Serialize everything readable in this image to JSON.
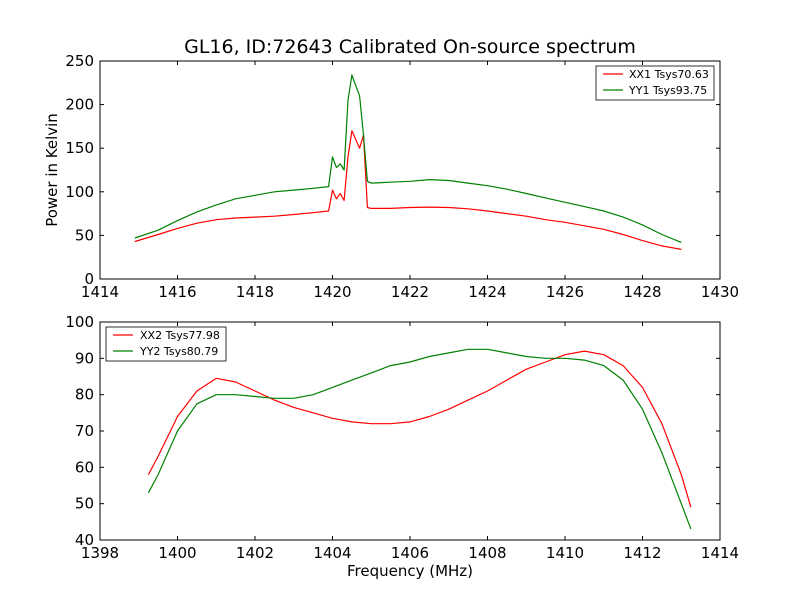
{
  "chart_data": [
    {
      "type": "line",
      "title": "GL16, ID:72643 Calibrated On-source spectrum",
      "xlabel": "",
      "ylabel": "Power in Kelvin",
      "xlim": [
        1414,
        1430
      ],
      "ylim": [
        0,
        250
      ],
      "xticks": [
        1414,
        1416,
        1418,
        1420,
        1422,
        1424,
        1426,
        1428,
        1430
      ],
      "yticks": [
        0,
        50,
        100,
        150,
        200,
        250
      ],
      "grid": false,
      "legend_position": "top-right",
      "series": [
        {
          "name": "XX1 Tsys70.63",
          "color": "#ff0000",
          "points": [
            [
              1414.9,
              43
            ],
            [
              1415.5,
              51
            ],
            [
              1416,
              58
            ],
            [
              1416.5,
              64
            ],
            [
              1417,
              68
            ],
            [
              1417.5,
              70
            ],
            [
              1418,
              71
            ],
            [
              1418.5,
              72
            ],
            [
              1419,
              74
            ],
            [
              1419.5,
              76
            ],
            [
              1419.9,
              78
            ],
            [
              1420.0,
              102
            ],
            [
              1420.1,
              92
            ],
            [
              1420.2,
              98
            ],
            [
              1420.3,
              90
            ],
            [
              1420.4,
              140
            ],
            [
              1420.5,
              170
            ],
            [
              1420.6,
              160
            ],
            [
              1420.7,
              150
            ],
            [
              1420.8,
              165
            ],
            [
              1420.9,
              82
            ],
            [
              1421.0,
              81
            ],
            [
              1421.5,
              81
            ],
            [
              1422,
              82
            ],
            [
              1422.5,
              82.5
            ],
            [
              1423,
              82
            ],
            [
              1423.5,
              80.5
            ],
            [
              1424,
              78
            ],
            [
              1424.5,
              75
            ],
            [
              1425,
              72
            ],
            [
              1425.5,
              68
            ],
            [
              1426,
              65
            ],
            [
              1426.5,
              61
            ],
            [
              1427,
              57
            ],
            [
              1427.5,
              51
            ],
            [
              1428,
              44
            ],
            [
              1428.5,
              38
            ],
            [
              1429,
              34
            ]
          ]
        },
        {
          "name": "YY1 Tsys93.75",
          "color": "#008000",
          "points": [
            [
              1414.9,
              47
            ],
            [
              1415.5,
              56
            ],
            [
              1416,
              67
            ],
            [
              1416.5,
              77
            ],
            [
              1417,
              85
            ],
            [
              1417.5,
              92
            ],
            [
              1418,
              96
            ],
            [
              1418.5,
              100
            ],
            [
              1419,
              102
            ],
            [
              1419.5,
              104
            ],
            [
              1419.9,
              106
            ],
            [
              1420.0,
              140
            ],
            [
              1420.1,
              128
            ],
            [
              1420.2,
              132
            ],
            [
              1420.3,
              125
            ],
            [
              1420.4,
              205
            ],
            [
              1420.5,
              234
            ],
            [
              1420.6,
              222
            ],
            [
              1420.7,
              210
            ],
            [
              1420.8,
              165
            ],
            [
              1420.9,
              112
            ],
            [
              1421.0,
              110
            ],
            [
              1421.5,
              111
            ],
            [
              1422,
              112
            ],
            [
              1422.5,
              114
            ],
            [
              1423,
              113
            ],
            [
              1423.5,
              110
            ],
            [
              1424,
              107
            ],
            [
              1424.5,
              103
            ],
            [
              1425,
              98
            ],
            [
              1425.5,
              93
            ],
            [
              1426,
              88
            ],
            [
              1426.5,
              83
            ],
            [
              1427,
              78
            ],
            [
              1427.5,
              71
            ],
            [
              1428,
              62
            ],
            [
              1428.5,
              51
            ],
            [
              1429,
              42
            ]
          ]
        }
      ]
    },
    {
      "type": "line",
      "title": "",
      "xlabel": "Frequency (MHz)",
      "ylabel": "",
      "xlim": [
        1398,
        1414
      ],
      "ylim": [
        40,
        100
      ],
      "xticks": [
        1398,
        1400,
        1402,
        1404,
        1406,
        1408,
        1410,
        1412,
        1414
      ],
      "yticks": [
        40,
        50,
        60,
        70,
        80,
        90,
        100
      ],
      "grid": false,
      "legend_position": "top-left",
      "series": [
        {
          "name": "XX2 Tsys77.98",
          "color": "#ff0000",
          "points": [
            [
              1399.25,
              58
            ],
            [
              1399.5,
              63
            ],
            [
              1400,
              74
            ],
            [
              1400.5,
              81
            ],
            [
              1401,
              84.5
            ],
            [
              1401.5,
              83.5
            ],
            [
              1402,
              81
            ],
            [
              1402.5,
              78.5
            ],
            [
              1403,
              76.5
            ],
            [
              1403.5,
              75
            ],
            [
              1404,
              73.5
            ],
            [
              1404.5,
              72.5
            ],
            [
              1405,
              72
            ],
            [
              1405.5,
              72
            ],
            [
              1406,
              72.5
            ],
            [
              1406.5,
              74
            ],
            [
              1407,
              76
            ],
            [
              1407.5,
              78.5
            ],
            [
              1408,
              81
            ],
            [
              1408.5,
              84
            ],
            [
              1409,
              87
            ],
            [
              1409.5,
              89
            ],
            [
              1410,
              91
            ],
            [
              1410.5,
              92
            ],
            [
              1411,
              91
            ],
            [
              1411.5,
              88
            ],
            [
              1412,
              82
            ],
            [
              1412.5,
              72
            ],
            [
              1413,
              58
            ],
            [
              1413.25,
              49
            ]
          ]
        },
        {
          "name": "YY2 Tsys80.79",
          "color": "#008000",
          "points": [
            [
              1399.25,
              53
            ],
            [
              1399.5,
              58
            ],
            [
              1400,
              70
            ],
            [
              1400.5,
              77.5
            ],
            [
              1401,
              80
            ],
            [
              1401.5,
              80
            ],
            [
              1402,
              79.5
            ],
            [
              1402.5,
              79
            ],
            [
              1403,
              79
            ],
            [
              1403.5,
              80
            ],
            [
              1404,
              82
            ],
            [
              1404.5,
              84
            ],
            [
              1405,
              86
            ],
            [
              1405.5,
              88
            ],
            [
              1406,
              89
            ],
            [
              1406.5,
              90.5
            ],
            [
              1407,
              91.5
            ],
            [
              1407.5,
              92.5
            ],
            [
              1408,
              92.5
            ],
            [
              1408.5,
              91.5
            ],
            [
              1409,
              90.5
            ],
            [
              1409.5,
              90
            ],
            [
              1410,
              90
            ],
            [
              1410.5,
              89.5
            ],
            [
              1411,
              88
            ],
            [
              1411.5,
              84
            ],
            [
              1412,
              76
            ],
            [
              1412.5,
              64
            ],
            [
              1413,
              50
            ],
            [
              1413.25,
              43
            ]
          ]
        }
      ]
    }
  ]
}
